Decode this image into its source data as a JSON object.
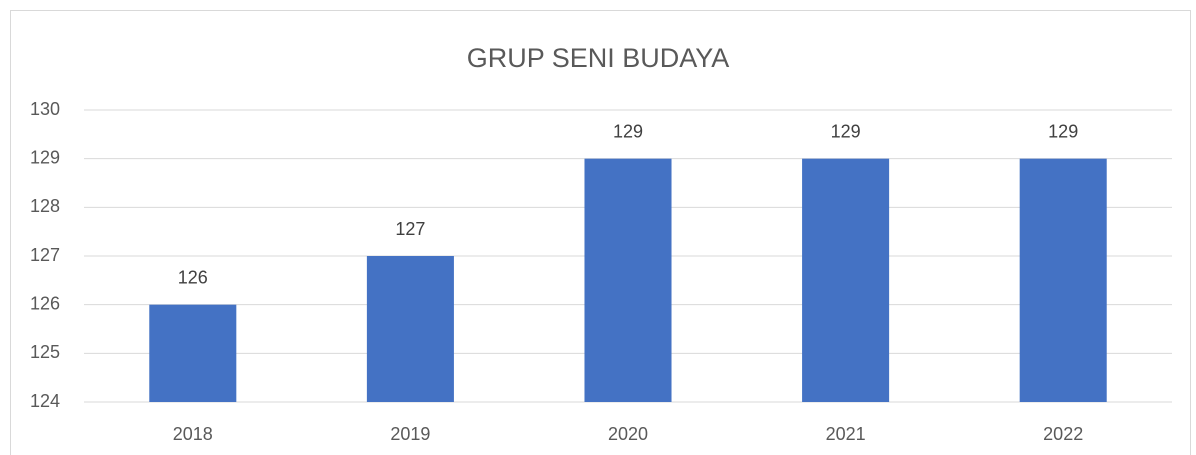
{
  "chart_data": {
    "type": "bar",
    "title": "GRUP SENI BUDAYA",
    "categories": [
      "2018",
      "2019",
      "2020",
      "2021",
      "2022"
    ],
    "values": [
      126,
      127,
      129,
      129,
      129
    ],
    "color": "#4472c4",
    "ylim": [
      124,
      130
    ],
    "yticks": [
      124,
      125,
      126,
      127,
      128,
      129,
      130
    ],
    "grid": true
  }
}
